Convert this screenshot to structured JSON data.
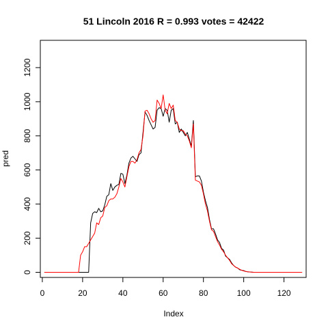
{
  "chart_data": {
    "type": "line",
    "title": "51 Lincoln 2016 R = 0.993 votes = 42422",
    "xlabel": "Index",
    "ylabel": "pred",
    "xlim": [
      -1,
      131
    ],
    "ylim": [
      -30,
      1360
    ],
    "x_ticks": [
      0,
      20,
      40,
      60,
      80,
      100,
      120
    ],
    "y_ticks": [
      0,
      200,
      400,
      600,
      800,
      1000,
      1200
    ],
    "grid": false,
    "legend": "none",
    "series": [
      {
        "color": "#000000",
        "values": [
          0,
          0,
          0,
          0,
          0,
          0,
          0,
          0,
          0,
          0,
          0,
          0,
          0,
          0,
          0,
          0,
          0,
          0,
          0,
          0,
          0,
          0,
          0,
          290,
          345,
          355,
          350,
          375,
          355,
          360,
          395,
          445,
          455,
          520,
          480,
          500,
          510,
          515,
          580,
          575,
          520,
          570,
          640,
          670,
          680,
          665,
          650,
          690,
          700,
          820,
          940,
          920,
          890,
          865,
          840,
          850,
          950,
          965,
          960,
          915,
          960,
          950,
          880,
          950,
          960,
          870,
          880,
          820,
          840,
          820,
          800,
          820,
          780,
          740,
          890,
          560,
          565,
          565,
          535,
          470,
          420,
          380,
          310,
          255,
          255,
          225,
          190,
          175,
          140,
          130,
          95,
          85,
          75,
          55,
          40,
          30,
          25,
          15,
          12,
          10,
          5,
          3,
          2,
          1,
          0,
          0,
          0,
          0,
          0,
          0,
          0,
          0,
          0,
          0,
          0,
          0,
          0,
          0,
          0,
          0,
          0,
          0,
          0,
          0,
          0,
          0,
          0,
          0,
          0
        ]
      },
      {
        "color": "#ff0000",
        "values": [
          0,
          0,
          0,
          0,
          0,
          0,
          0,
          0,
          0,
          0,
          0,
          0,
          0,
          0,
          0,
          0,
          0,
          0,
          100,
          120,
          150,
          150,
          170,
          190,
          210,
          230,
          290,
          280,
          320,
          330,
          380,
          390,
          420,
          430,
          430,
          440,
          460,
          500,
          550,
          530,
          500,
          560,
          620,
          650,
          650,
          640,
          660,
          700,
          720,
          800,
          945,
          950,
          930,
          900,
          880,
          890,
          1010,
          990,
          960,
          1040,
          950,
          930,
          990,
          960,
          980,
          890,
          880,
          840,
          830,
          830,
          810,
          800,
          770,
          730,
          870,
          540,
          535,
          530,
          510,
          460,
          400,
          360,
          300,
          250,
          240,
          210,
          180,
          160,
          135,
          120,
          100,
          85,
          70,
          50,
          40,
          30,
          25,
          18,
          12,
          8,
          5,
          3,
          2,
          1,
          0,
          0,
          0,
          0,
          0,
          0,
          0,
          0,
          0,
          0,
          0,
          0,
          0,
          0,
          0,
          0,
          0,
          0,
          0,
          0,
          0,
          0,
          0,
          0,
          0
        ]
      }
    ]
  }
}
